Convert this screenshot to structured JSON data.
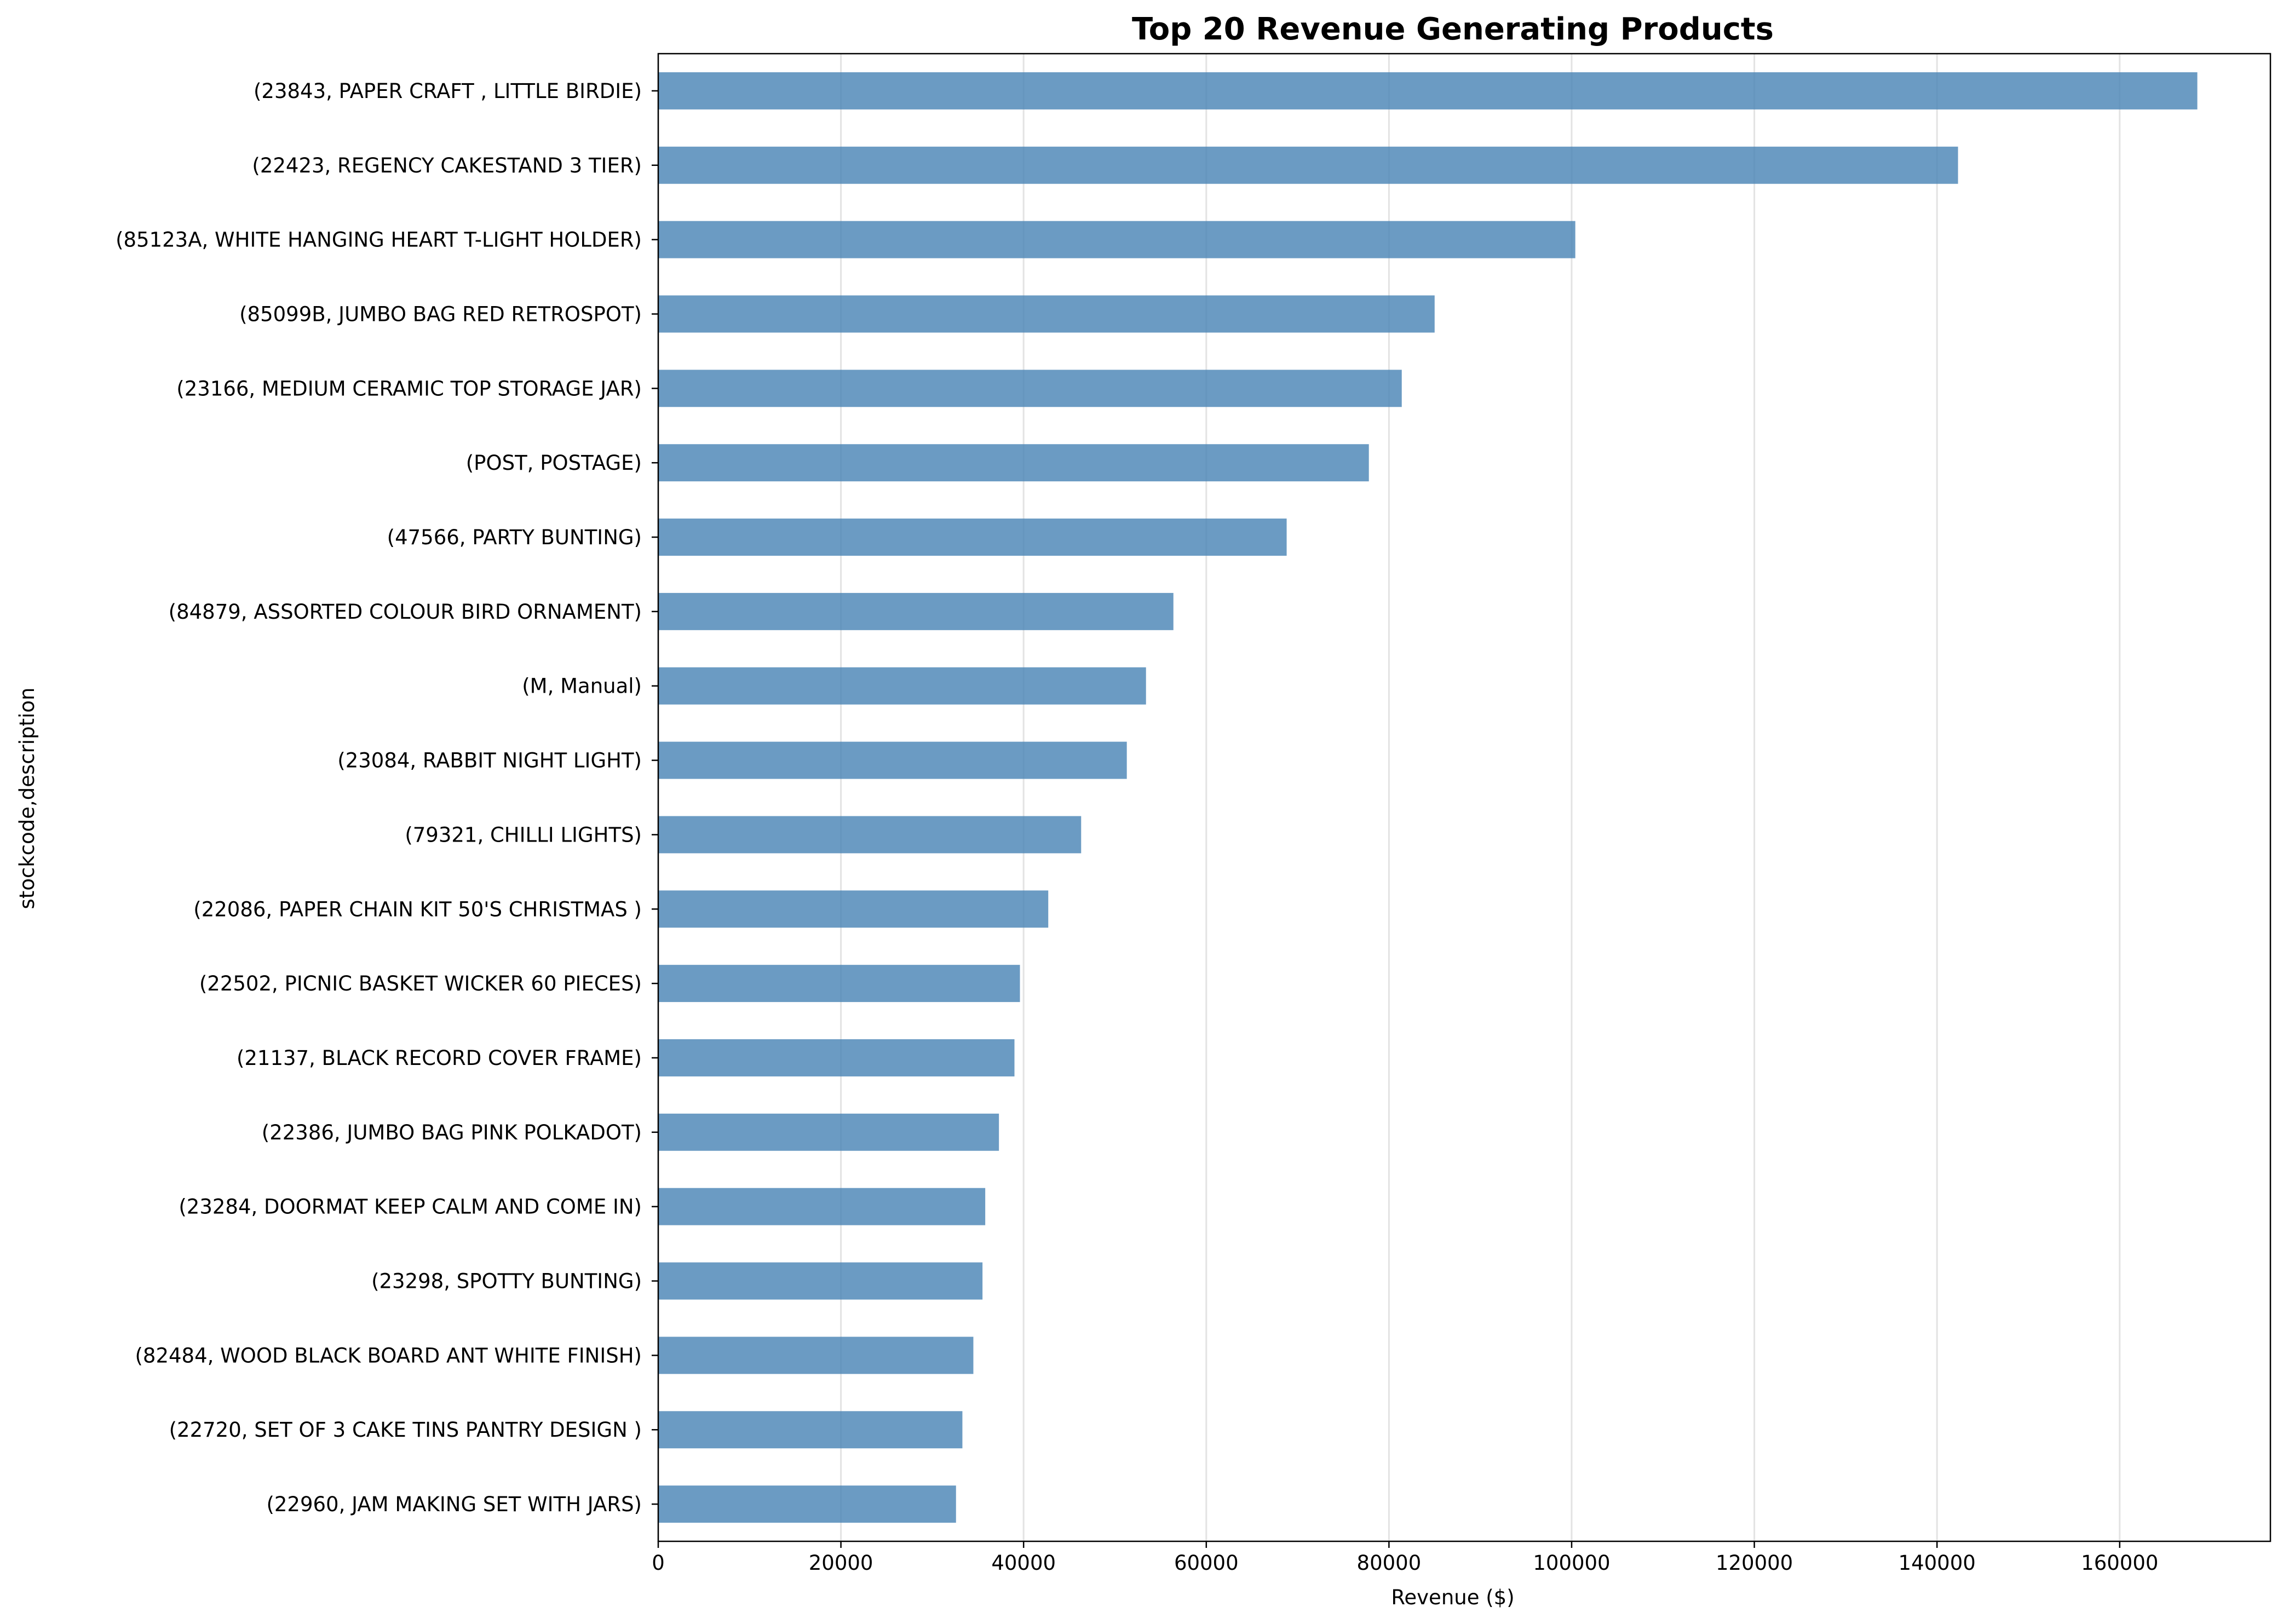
{
  "chart_data": {
    "type": "bar",
    "orientation": "horizontal",
    "title": "Top 20 Revenue Generating Products",
    "xlabel": "Revenue ($)",
    "ylabel": "stockcode,description",
    "xlim": [
      0,
      176500
    ],
    "xticks": [
      0,
      20000,
      40000,
      60000,
      80000,
      100000,
      120000,
      140000,
      160000
    ],
    "grid": "vertical",
    "bar_color": "#4682b4",
    "categories": [
      "(22960, JAM MAKING SET WITH JARS)",
      "(22720, SET OF 3 CAKE TINS PANTRY DESIGN )",
      "(82484, WOOD BLACK BOARD ANT WHITE FINISH)",
      "(23298, SPOTTY BUNTING)",
      "(23284, DOORMAT KEEP CALM AND COME IN)",
      "(22386, JUMBO BAG PINK POLKADOT)",
      "(21137, BLACK RECORD COVER FRAME)",
      "(22502, PICNIC BASKET WICKER 60 PIECES)",
      "(22086, PAPER CHAIN KIT 50'S CHRISTMAS )",
      "(79321, CHILLI LIGHTS)",
      "(23084, RABBIT NIGHT LIGHT)",
      "(M, Manual)",
      "(84879, ASSORTED COLOUR BIRD ORNAMENT)",
      "(47566, PARTY BUNTING)",
      "(POST, POSTAGE)",
      "(23166, MEDIUM CERAMIC TOP STORAGE JAR)",
      "(85099B, JUMBO BAG RED RETROSPOT)",
      "(85123A, WHITE HANGING HEART T-LIGHT HOLDER)",
      "(22423, REGENCY CAKESTAND 3 TIER)",
      "(23843, PAPER CRAFT , LITTLE BIRDIE)"
    ],
    "values": [
      32600,
      33300,
      34500,
      35500,
      35800,
      37300,
      39000,
      39600,
      42700,
      46300,
      51300,
      53400,
      56400,
      68800,
      77800,
      81400,
      85000,
      100400,
      142300,
      168500
    ]
  }
}
